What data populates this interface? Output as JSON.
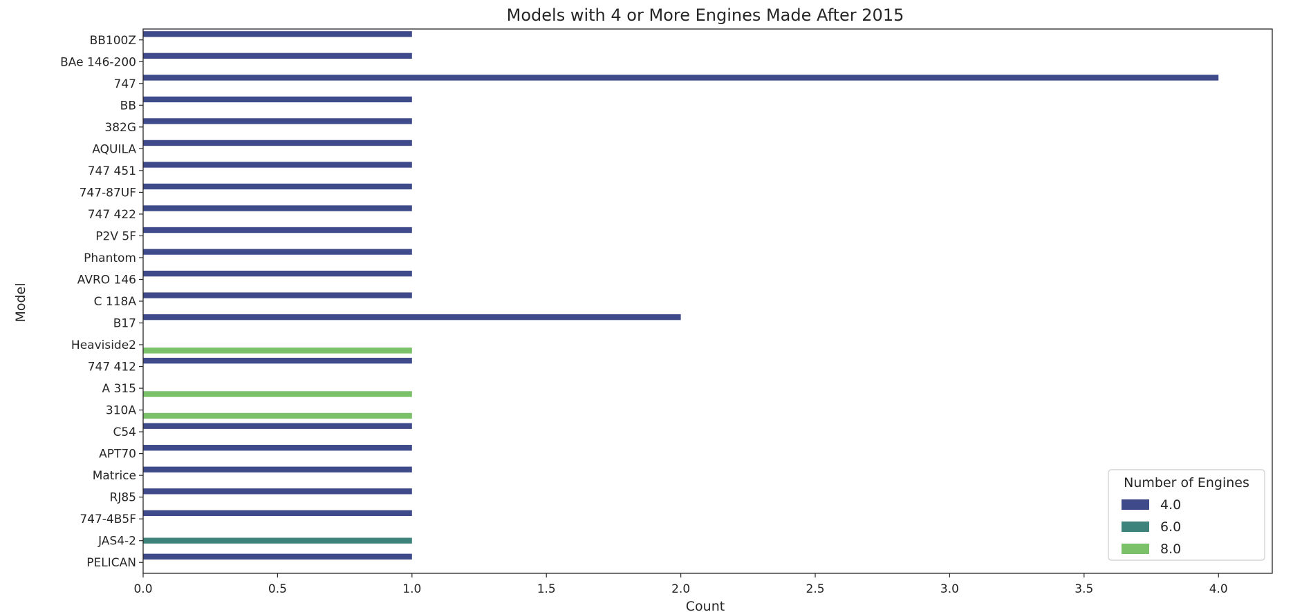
{
  "chart_data": {
    "type": "bar",
    "orientation": "horizontal",
    "title": "Models with 4 or More Engines Made After 2015",
    "xlabel": "Count",
    "ylabel": "Model",
    "xlim": [
      0,
      4.2
    ],
    "xticks": [
      "0.0",
      "0.5",
      "1.0",
      "1.5",
      "2.0",
      "2.5",
      "3.0",
      "3.5",
      "4.0"
    ],
    "xtick_values": [
      0,
      0.5,
      1.0,
      1.5,
      2.0,
      2.5,
      3.0,
      3.5,
      4.0
    ],
    "grid": false,
    "legend_placement": "lower-right",
    "legend_title": "Number of Engines",
    "categories": [
      "BB100Z",
      "BAe 146-200",
      "747",
      "BB",
      "382G",
      "AQUILA",
      "747 451",
      "747-87UF",
      "747 422",
      "P2V 5F",
      "Phantom",
      "AVRO  146",
      "C 118A",
      "B17",
      "Heaviside2",
      "747 412",
      "A 315",
      "310A",
      "C54",
      "APT70",
      "Matrice",
      "RJ85",
      "747-4B5F",
      "JAS4-2",
      "PELICAN"
    ],
    "series": [
      {
        "name": "4.0",
        "color": "#3e4a89",
        "values": [
          1,
          1,
          4,
          1,
          1,
          1,
          1,
          1,
          1,
          1,
          1,
          1,
          1,
          2,
          null,
          1,
          null,
          null,
          1,
          1,
          1,
          1,
          1,
          null,
          1
        ]
      },
      {
        "name": "6.0",
        "color": "#3d837b",
        "values": [
          null,
          null,
          null,
          null,
          null,
          null,
          null,
          null,
          null,
          null,
          null,
          null,
          null,
          null,
          null,
          null,
          null,
          null,
          null,
          null,
          null,
          null,
          null,
          1,
          null
        ]
      },
      {
        "name": "8.0",
        "color": "#7ac169",
        "values": [
          null,
          null,
          null,
          null,
          null,
          null,
          null,
          null,
          null,
          null,
          null,
          null,
          null,
          null,
          1,
          null,
          1,
          1,
          null,
          null,
          null,
          null,
          null,
          null,
          null
        ]
      }
    ]
  }
}
